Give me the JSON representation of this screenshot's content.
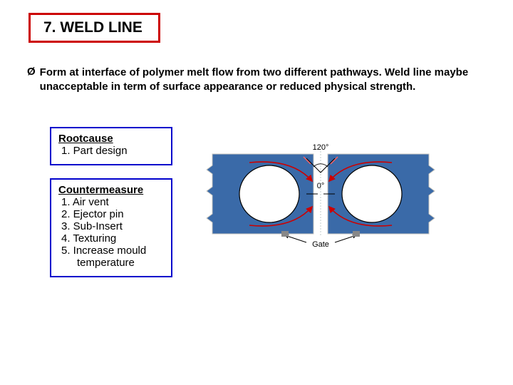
{
  "title": "7. WELD LINE",
  "bullet_glyph": "Ø",
  "description": "Form at interface of polymer melt flow from two different pathways. Weld line maybe unacceptable in term of surface appearance or reduced physical strength.",
  "rootcause": {
    "header": "Rootcause",
    "items": [
      "Part design"
    ]
  },
  "countermeasure": {
    "header": "Countermeasure",
    "items": [
      "Air vent",
      "Ejector pin",
      "Sub-Insert",
      "Texturing",
      "Increase mould temperature"
    ]
  },
  "diagram": {
    "plate_color": "#3a6aa8",
    "plate_edge": "#c8c6bf",
    "hole_fill": "#ffffff",
    "hole_stroke": "#000000",
    "angle_top_label": "120°",
    "angle_mid_label": "0°",
    "gate_label": "Gate",
    "flow_arrow_color": "#cc0000",
    "small_arrow_color": "#ff6060",
    "label_color": "#000000",
    "label_fontsize": 11
  },
  "colors": {
    "title_border": "#cc0000",
    "box_border": "#0000cc",
    "text": "#000000",
    "background": "#ffffff"
  }
}
